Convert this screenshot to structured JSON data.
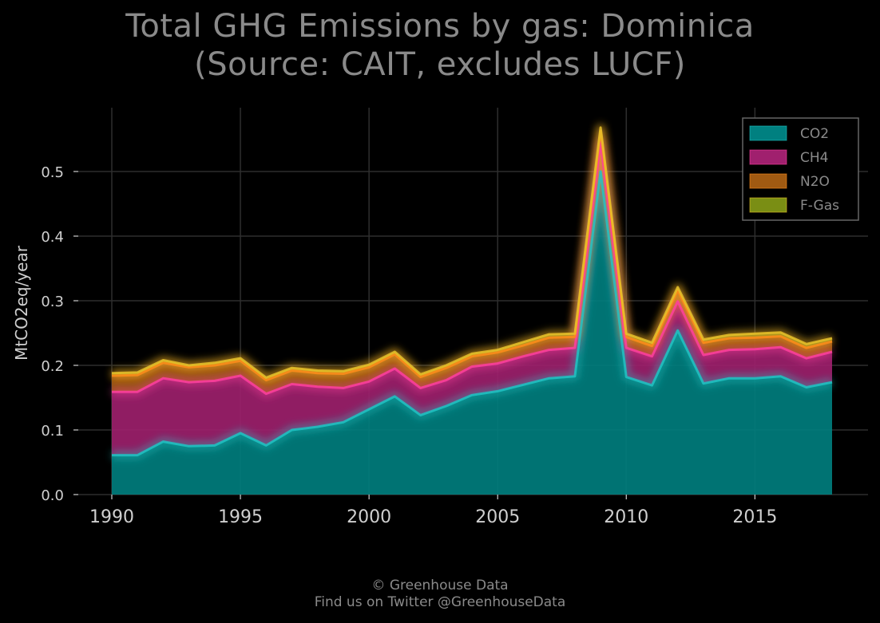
{
  "chart_data": {
    "type": "area",
    "title_line1": "Total GHG Emissions by gas: Dominica",
    "title_line2": "(Source: CAIT, excludes LUCF)",
    "xlabel": "",
    "ylabel": "MtCO2eq/year",
    "xlim": [
      1989.5,
      2019.5
    ],
    "ylim": [
      0.0,
      0.6
    ],
    "x_ticks": [
      1990,
      1995,
      2000,
      2005,
      2010,
      2015
    ],
    "y_ticks": [
      0.0,
      0.1,
      0.2,
      0.3,
      0.4,
      0.5
    ],
    "y_tick_labels": [
      "0.0",
      "0.1",
      "0.2",
      "0.3",
      "0.4",
      "0.5"
    ],
    "grid": true,
    "stacked": true,
    "legend_position": "top-right",
    "x": [
      1990,
      1991,
      1992,
      1993,
      1994,
      1995,
      1996,
      1997,
      1998,
      1999,
      2000,
      2001,
      2002,
      2003,
      2004,
      2005,
      2006,
      2007,
      2008,
      2009,
      2010,
      2011,
      2012,
      2013,
      2014,
      2015,
      2016,
      2017,
      2018
    ],
    "series": [
      {
        "name": "CO2",
        "color": "#008080",
        "line_color": "#20c4c4",
        "values": [
          0.061,
          0.061,
          0.082,
          0.075,
          0.076,
          0.095,
          0.076,
          0.1,
          0.105,
          0.112,
          0.132,
          0.152,
          0.123,
          0.137,
          0.154,
          0.16,
          0.17,
          0.18,
          0.183,
          0.5,
          0.182,
          0.169,
          0.254,
          0.172,
          0.18,
          0.18,
          0.183,
          0.166,
          0.174
        ]
      },
      {
        "name": "CH4",
        "color": "#a0206e",
        "line_color": "#ff3fa0",
        "values": [
          0.098,
          0.098,
          0.098,
          0.099,
          0.1,
          0.089,
          0.08,
          0.071,
          0.062,
          0.053,
          0.043,
          0.043,
          0.042,
          0.04,
          0.044,
          0.043,
          0.044,
          0.044,
          0.044,
          0.045,
          0.045,
          0.045,
          0.045,
          0.044,
          0.044,
          0.045,
          0.045,
          0.045,
          0.047
        ]
      },
      {
        "name": "N2O",
        "color": "#a05a12",
        "line_color": "#ff8c1a",
        "values": [
          0.025,
          0.026,
          0.024,
          0.023,
          0.024,
          0.023,
          0.021,
          0.021,
          0.021,
          0.022,
          0.022,
          0.022,
          0.017,
          0.019,
          0.016,
          0.017,
          0.017,
          0.019,
          0.017,
          0.018,
          0.017,
          0.016,
          0.017,
          0.019,
          0.018,
          0.018,
          0.017,
          0.016,
          0.016
        ]
      },
      {
        "name": "F-Gas",
        "color": "#7a8e14",
        "line_color": "#e8c22a",
        "values": [
          0.004,
          0.004,
          0.004,
          0.003,
          0.004,
          0.004,
          0.004,
          0.004,
          0.004,
          0.004,
          0.004,
          0.004,
          0.004,
          0.004,
          0.004,
          0.004,
          0.005,
          0.005,
          0.005,
          0.005,
          0.005,
          0.005,
          0.005,
          0.005,
          0.005,
          0.006,
          0.006,
          0.006,
          0.005
        ]
      }
    ]
  },
  "credit": {
    "line1": "© Greenhouse Data",
    "line2": "Find us on Twitter @GreenhouseData"
  },
  "colors": {
    "background": "#000000",
    "grid": "#2e2e2e",
    "axis_text": "#cfcfcf",
    "title_text": "#8a8a8a",
    "legend_border": "#666666"
  }
}
